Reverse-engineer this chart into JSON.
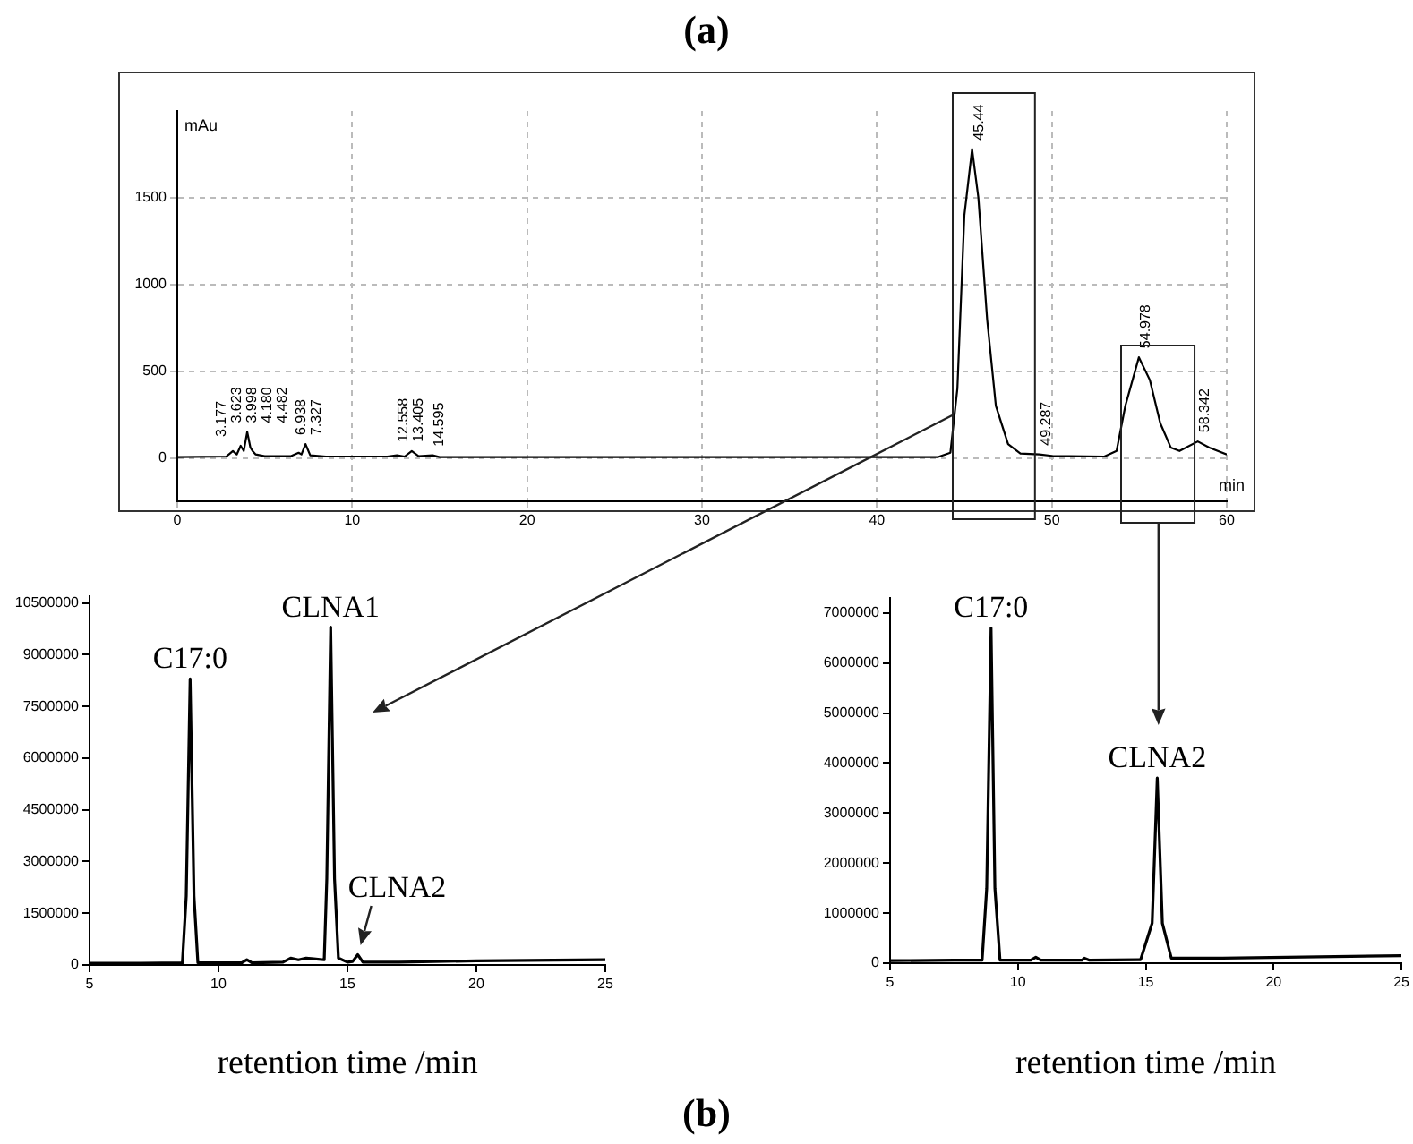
{
  "chart_data": [
    {
      "type": "line",
      "title": "(a)",
      "xlabel": "min",
      "ylabel": "mAu",
      "color": "#000000",
      "grid": true,
      "legend": false,
      "xlim": [
        0,
        60
      ],
      "xticks": [
        0,
        10,
        20,
        30,
        40,
        50,
        60
      ],
      "ylim": [
        -250,
        2000
      ],
      "yticks": [
        0,
        500,
        1000,
        1500
      ],
      "x": [
        0,
        2.8,
        3.177,
        3.4,
        3.623,
        3.8,
        3.998,
        4.18,
        4.3,
        4.482,
        5,
        6.5,
        6.938,
        7.1,
        7.327,
        7.6,
        8.5,
        12,
        12.558,
        13,
        13.405,
        13.8,
        14.595,
        15,
        30,
        43.5,
        44.2,
        44.6,
        45,
        45.44,
        45.8,
        46.3,
        46.8,
        47.5,
        48.2,
        49.287,
        50,
        53,
        53.7,
        54.2,
        54.978,
        55.6,
        56.2,
        56.8,
        57.3,
        58.342,
        59,
        60
      ],
      "values": [
        5,
        8,
        40,
        20,
        70,
        40,
        150,
        60,
        40,
        20,
        10,
        10,
        30,
        20,
        80,
        15,
        8,
        8,
        15,
        8,
        40,
        10,
        15,
        5,
        5,
        5,
        30,
        400,
        1400,
        1780,
        1500,
        800,
        300,
        80,
        25,
        20,
        12,
        8,
        40,
        300,
        580,
        450,
        200,
        60,
        40,
        95,
        60,
        20
      ],
      "annotations": [
        {
          "text": "3.177",
          "x": 3.177,
          "y": 40
        },
        {
          "text": "3.623",
          "x": 3.623,
          "y": 70
        },
        {
          "text": "3.998",
          "x": 3.998,
          "y": 150
        },
        {
          "text": "4.180",
          "x": 4.18,
          "y": 60
        },
        {
          "text": "4.482",
          "x": 4.482,
          "y": 20
        },
        {
          "text": "6.938",
          "x": 6.938,
          "y": 30
        },
        {
          "text": "7.327",
          "x": 7.327,
          "y": 80
        },
        {
          "text": "12.558",
          "x": 12.558,
          "y": 15
        },
        {
          "text": "13.405",
          "x": 13.405,
          "y": 40
        },
        {
          "text": "14.595",
          "x": 14.595,
          "y": 15
        },
        {
          "text": "45.44",
          "x": 45.44,
          "y": 1780
        },
        {
          "text": "49.287",
          "x": 49.287,
          "y": 20
        },
        {
          "text": "54.978",
          "x": 54.978,
          "y": 580
        },
        {
          "text": "58.342",
          "x": 58.342,
          "y": 95
        }
      ]
    },
    {
      "type": "line",
      "xlabel": "retention time /min",
      "color": "#000000",
      "legend": false,
      "xlim": [
        5,
        25
      ],
      "xticks": [
        5,
        10,
        15,
        20,
        25
      ],
      "ylim": [
        0,
        10700000
      ],
      "yticks": [
        0,
        1500000,
        3000000,
        4500000,
        6000000,
        7500000,
        9000000,
        10500000
      ],
      "x": [
        5,
        7,
        8.6,
        8.75,
        8.9,
        9.05,
        9.2,
        10.9,
        11.1,
        11.3,
        12.5,
        12.8,
        13.1,
        13.4,
        13.7,
        14.1,
        14.2,
        14.35,
        14.5,
        14.65,
        15,
        15.2,
        15.4,
        15.6,
        17,
        20,
        25
      ],
      "values": [
        50000,
        50000,
        60000,
        2000000,
        8300000,
        2000000,
        70000,
        60000,
        150000,
        60000,
        80000,
        200000,
        150000,
        200000,
        180000,
        150000,
        2500000,
        9800000,
        2500000,
        200000,
        80000,
        100000,
        300000,
        80000,
        80000,
        120000,
        150000
      ],
      "annotations": [
        {
          "text": "C17:0",
          "x": 8.9,
          "y": 8300000
        },
        {
          "text": "CLNA1",
          "x": 14.35,
          "y": 9800000
        },
        {
          "text": "CLNA2",
          "x": 15.4,
          "y": 300000
        },
        "(b)"
      ]
    },
    {
      "type": "line",
      "xlabel": "retention time /min",
      "color": "#000000",
      "legend": false,
      "xlim": [
        5,
        25
      ],
      "xticks": [
        5,
        10,
        15,
        20,
        25
      ],
      "ylim": [
        0,
        7300000
      ],
      "yticks": [
        0,
        1000000,
        2000000,
        3000000,
        4000000,
        5000000,
        6000000,
        7000000
      ],
      "x": [
        5,
        7.5,
        8.6,
        8.78,
        8.95,
        9.1,
        9.3,
        10.5,
        10.7,
        10.9,
        12.5,
        12.6,
        12.8,
        14.8,
        15.25,
        15.45,
        15.65,
        16,
        18,
        25
      ],
      "values": [
        50000,
        60000,
        60000,
        1500000,
        6700000,
        1500000,
        60000,
        60000,
        120000,
        60000,
        60000,
        100000,
        60000,
        70000,
        800000,
        3700000,
        800000,
        100000,
        100000,
        150000
      ],
      "annotations": [
        {
          "text": "C17:0",
          "x": 8.95,
          "y": 6700000
        },
        {
          "text": "CLNA2",
          "x": 15.45,
          "y": 3700000
        }
      ]
    }
  ]
}
